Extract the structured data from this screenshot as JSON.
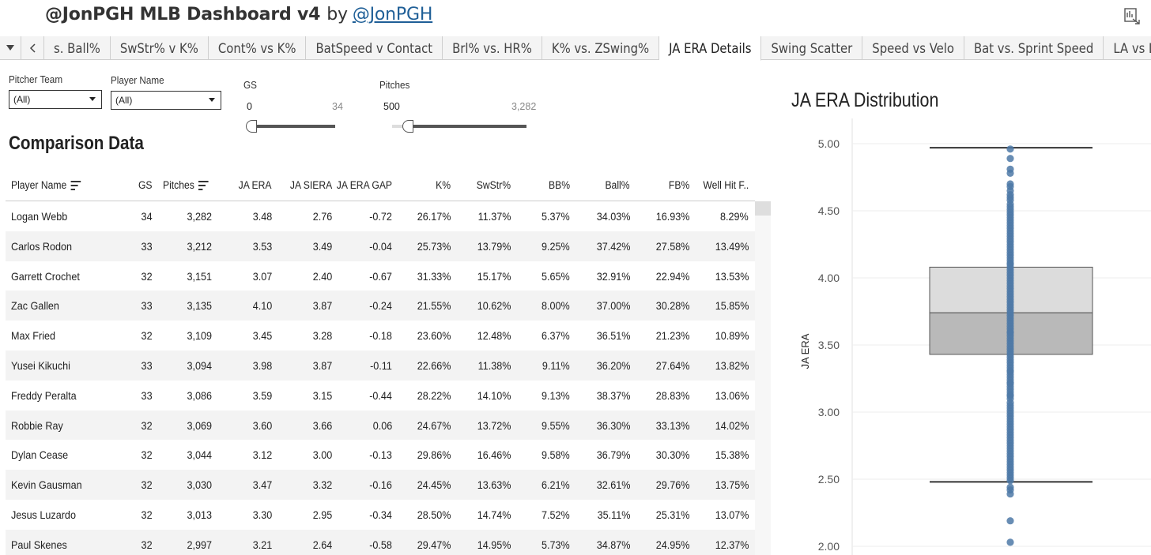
{
  "header": {
    "title": "@JonPGH MLB Dashboard v4",
    "by": "by",
    "author_link": "@JonPGH"
  },
  "tabs": {
    "items": [
      {
        "label": "s. Ball%"
      },
      {
        "label": "SwStr% v K%"
      },
      {
        "label": "Cont% vs K%"
      },
      {
        "label": "BatSpeed v Contact"
      },
      {
        "label": "Brl% vs. HR%"
      },
      {
        "label": "K% vs. ZSwing%"
      },
      {
        "label": "JA ERA Details",
        "active": true
      },
      {
        "label": "Swing Scatter"
      },
      {
        "label": "Speed vs Velo"
      },
      {
        "label": "Bat vs. Sprint Speed"
      },
      {
        "label": "LA vs LV"
      }
    ]
  },
  "filters": {
    "pitcher_team": {
      "label": "Pitcher Team",
      "value": "(All)"
    },
    "player_name": {
      "label": "Player Name",
      "value": "(All)"
    },
    "gs": {
      "label": "GS",
      "min": "0",
      "max": "34",
      "level": 0
    },
    "pitches": {
      "label": "Pitches",
      "min": "500",
      "max": "3,282",
      "level": 0.04
    }
  },
  "table": {
    "title": "Comparison Data",
    "columns": [
      "Player Name",
      "GS",
      "Pitches",
      "JA ERA",
      "JA SIERA",
      "JA ERA GAP",
      "K%",
      "SwStr%",
      "BB%",
      "Ball%",
      "FB%",
      "Well Hit F.."
    ],
    "rows": [
      [
        "Logan Webb",
        "34",
        "3,282",
        "3.48",
        "2.76",
        "-0.72",
        "26.17%",
        "11.37%",
        "5.37%",
        "34.03%",
        "16.93%",
        "8.29%"
      ],
      [
        "Carlos Rodon",
        "33",
        "3,212",
        "3.53",
        "3.49",
        "-0.04",
        "25.73%",
        "13.79%",
        "9.25%",
        "37.42%",
        "27.58%",
        "13.49%"
      ],
      [
        "Garrett Crochet",
        "32",
        "3,151",
        "3.07",
        "2.40",
        "-0.67",
        "31.33%",
        "15.17%",
        "5.65%",
        "32.91%",
        "22.94%",
        "13.53%"
      ],
      [
        "Zac Gallen",
        "33",
        "3,135",
        "4.10",
        "3.87",
        "-0.24",
        "21.55%",
        "10.62%",
        "8.00%",
        "37.00%",
        "30.28%",
        "15.85%"
      ],
      [
        "Max Fried",
        "32",
        "3,109",
        "3.45",
        "3.28",
        "-0.18",
        "23.60%",
        "12.48%",
        "6.37%",
        "36.51%",
        "21.23%",
        "10.89%"
      ],
      [
        "Yusei Kikuchi",
        "33",
        "3,094",
        "3.98",
        "3.87",
        "-0.11",
        "22.66%",
        "11.38%",
        "9.11%",
        "36.20%",
        "27.64%",
        "13.82%"
      ],
      [
        "Freddy Peralta",
        "33",
        "3,086",
        "3.59",
        "3.15",
        "-0.44",
        "28.22%",
        "14.10%",
        "9.13%",
        "38.37%",
        "28.83%",
        "13.06%"
      ],
      [
        "Robbie Ray",
        "32",
        "3,069",
        "3.60",
        "3.66",
        "0.06",
        "24.67%",
        "13.72%",
        "9.55%",
        "36.30%",
        "33.13%",
        "14.02%"
      ],
      [
        "Dylan Cease",
        "32",
        "3,044",
        "3.12",
        "3.00",
        "-0.13",
        "29.86%",
        "16.46%",
        "9.58%",
        "36.79%",
        "30.30%",
        "15.38%"
      ],
      [
        "Kevin Gausman",
        "32",
        "3,030",
        "3.47",
        "3.32",
        "-0.16",
        "24.45%",
        "13.63%",
        "6.21%",
        "32.61%",
        "29.76%",
        "13.75%"
      ],
      [
        "Jesus Luzardo",
        "32",
        "3,013",
        "3.30",
        "2.95",
        "-0.34",
        "28.50%",
        "14.74%",
        "7.52%",
        "35.11%",
        "25.31%",
        "13.07%"
      ],
      [
        "Paul Skenes",
        "32",
        "2,997",
        "3.21",
        "2.64",
        "-0.58",
        "29.47%",
        "14.95%",
        "5.73%",
        "34.87%",
        "24.95%",
        "12.37%"
      ]
    ]
  },
  "chart_data": {
    "type": "scatter",
    "title": "JA ERA Distribution",
    "ylabel": "JA ERA",
    "ylim": [
      2.0,
      5.0
    ],
    "yticks": [
      "5.00",
      "4.50",
      "4.00",
      "3.50",
      "3.00",
      "2.50",
      "2.00"
    ],
    "box": {
      "whisker_high": 4.97,
      "q3": 4.08,
      "median": 3.74,
      "q1": 3.43,
      "whisker_low": 2.48
    },
    "points": [
      4.96,
      4.89,
      4.81,
      4.78,
      4.7,
      4.68,
      4.65,
      4.62,
      4.6,
      4.58,
      4.55,
      4.53,
      4.51,
      4.49,
      4.47,
      4.45,
      4.43,
      4.41,
      4.39,
      4.37,
      4.35,
      4.33,
      4.31,
      4.29,
      4.27,
      4.25,
      4.23,
      4.21,
      4.19,
      4.17,
      4.15,
      4.13,
      4.11,
      4.1,
      4.08,
      4.06,
      4.04,
      4.02,
      4.0,
      3.98,
      3.96,
      3.94,
      3.92,
      3.9,
      3.88,
      3.86,
      3.84,
      3.82,
      3.8,
      3.78,
      3.76,
      3.74,
      3.72,
      3.7,
      3.68,
      3.66,
      3.64,
      3.62,
      3.6,
      3.59,
      3.57,
      3.55,
      3.53,
      3.51,
      3.49,
      3.47,
      3.45,
      3.43,
      3.41,
      3.39,
      3.37,
      3.35,
      3.33,
      3.31,
      3.3,
      3.28,
      3.26,
      3.24,
      3.22,
      3.21,
      3.19,
      3.17,
      3.15,
      3.13,
      3.12,
      3.1,
      3.07,
      3.05,
      3.03,
      3.01,
      2.99,
      2.97,
      2.95,
      2.93,
      2.91,
      2.89,
      2.87,
      2.85,
      2.83,
      2.81,
      2.79,
      2.77,
      2.75,
      2.73,
      2.71,
      2.69,
      2.67,
      2.65,
      2.63,
      2.61,
      2.59,
      2.57,
      2.55,
      2.53,
      2.51,
      2.49,
      2.44,
      2.42,
      2.39,
      2.19,
      2.03
    ],
    "color": "#4e79a7"
  }
}
